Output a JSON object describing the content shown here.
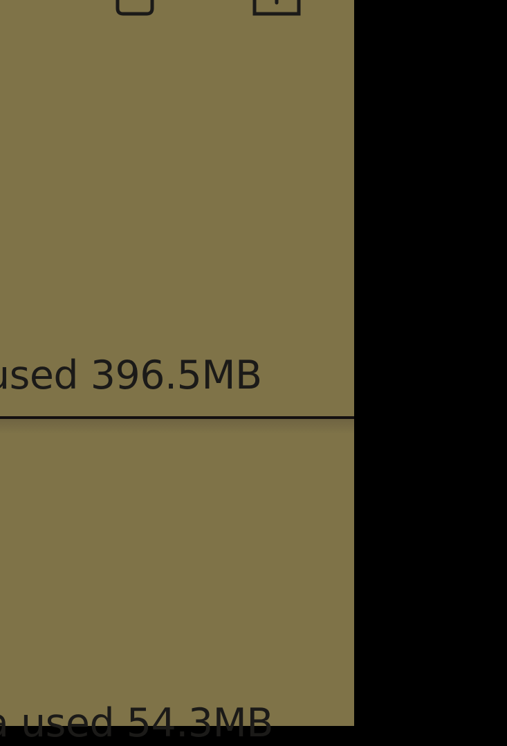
{
  "storage": {
    "items": [
      {
        "usage_text": "used 396.5MB"
      },
      {
        "usage_text": "a used 54.3MB"
      }
    ]
  },
  "icons": {
    "left": "app-icon",
    "right": "share-icon"
  },
  "colors": {
    "panel_background": "#7f7348",
    "outside_background": "#000000",
    "text": "#1b1a18",
    "divider": "#141010"
  }
}
